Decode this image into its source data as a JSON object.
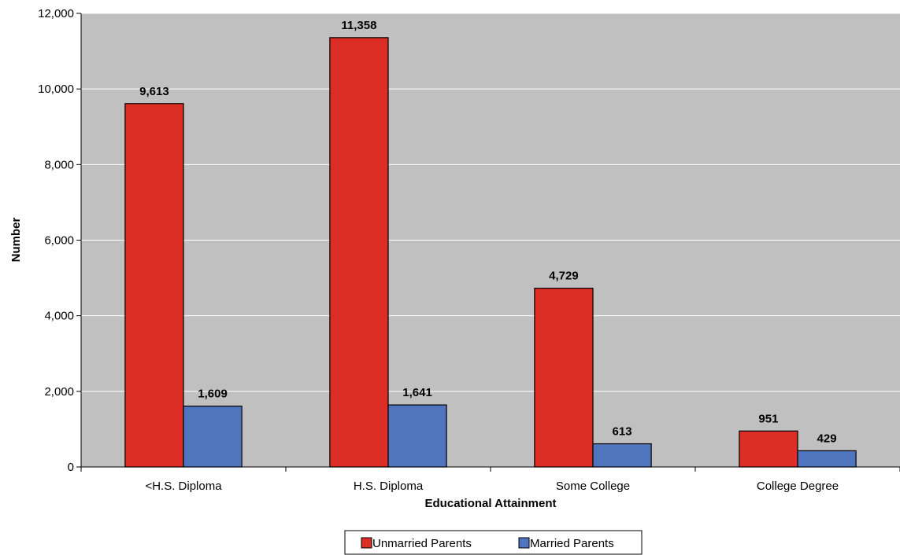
{
  "chart_data": {
    "type": "bar",
    "categories": [
      "<H.S. Diploma",
      "H.S. Diploma",
      "Some College",
      "College Degree"
    ],
    "series": [
      {
        "name": "Unmarried Parents",
        "values": [
          9613,
          11358,
          4729,
          951
        ],
        "labels": [
          "9,613",
          "11,358",
          "4,729",
          "951"
        ],
        "color": "#dc2e25"
      },
      {
        "name": "Married Parents",
        "values": [
          1609,
          1641,
          613,
          429
        ],
        "labels": [
          "1,609",
          "1,641",
          "613",
          "429"
        ],
        "color": "#4f75be"
      }
    ],
    "title": "",
    "xlabel": "Educational Attainment",
    "ylabel": "Number",
    "ylim": [
      0,
      12000
    ],
    "yticks": [
      0,
      2000,
      4000,
      6000,
      8000,
      10000,
      12000
    ],
    "ytick_labels": [
      "0",
      "2,000",
      "4,000",
      "6,000",
      "8,000",
      "10,000",
      "12,000"
    ],
    "grid": true,
    "plot_background": "#c0c0c0",
    "legend_position": "bottom"
  }
}
